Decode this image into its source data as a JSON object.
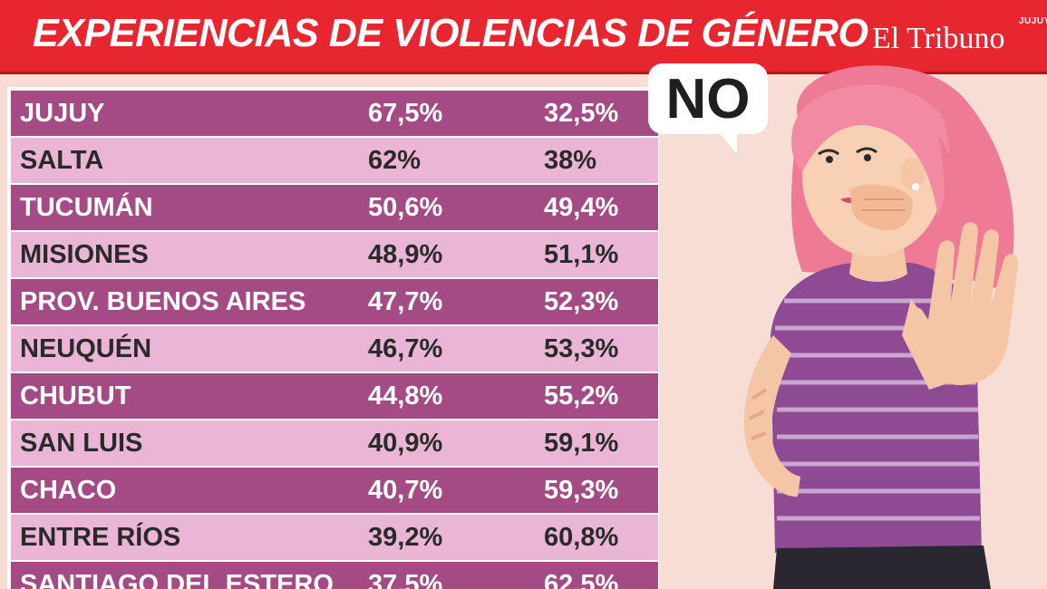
{
  "header": {
    "title": "EXPERIENCIAS DE VIOLENCIAS DE GÉNERO",
    "brand": "El Tribuno",
    "brand_region": "JUJUY"
  },
  "illustration": {
    "speech_bubble": "NO"
  },
  "chart_data": {
    "type": "table",
    "title": "EXPERIENCIAS DE VIOLENCIAS DE GÉNERO",
    "rows": [
      {
        "province": "JUJUY",
        "yes": "67,5%",
        "no": "32,5%"
      },
      {
        "province": "SALTA",
        "yes": "62%",
        "no": "38%"
      },
      {
        "province": "TUCUMÁN",
        "yes": "50,6%",
        "no": "49,4%"
      },
      {
        "province": "MISIONES",
        "yes": "48,9%",
        "no": "51,1%"
      },
      {
        "province": "PROV. BUENOS AIRES",
        "yes": "47,7%",
        "no": "52,3%"
      },
      {
        "province": "NEUQUÉN",
        "yes": "46,7%",
        "no": "53,3%"
      },
      {
        "province": "CHUBUT",
        "yes": "44,8%",
        "no": "55,2%"
      },
      {
        "province": "SAN LUIS",
        "yes": "40,9%",
        "no": "59,1%"
      },
      {
        "province": "CHACO",
        "yes": "40,7%",
        "no": "59,3%"
      },
      {
        "province": "ENTRE RÍOS",
        "yes": "39,2%",
        "no": "60,8%"
      },
      {
        "province": "SANTIAGO DEL ESTERO",
        "yes": "37,5%",
        "no": "62,5%"
      }
    ],
    "colors": {
      "header": "#e8262f",
      "row_dark": "#a44a84",
      "row_light": "#ebb6d5",
      "background": "#f7ddd3"
    }
  }
}
